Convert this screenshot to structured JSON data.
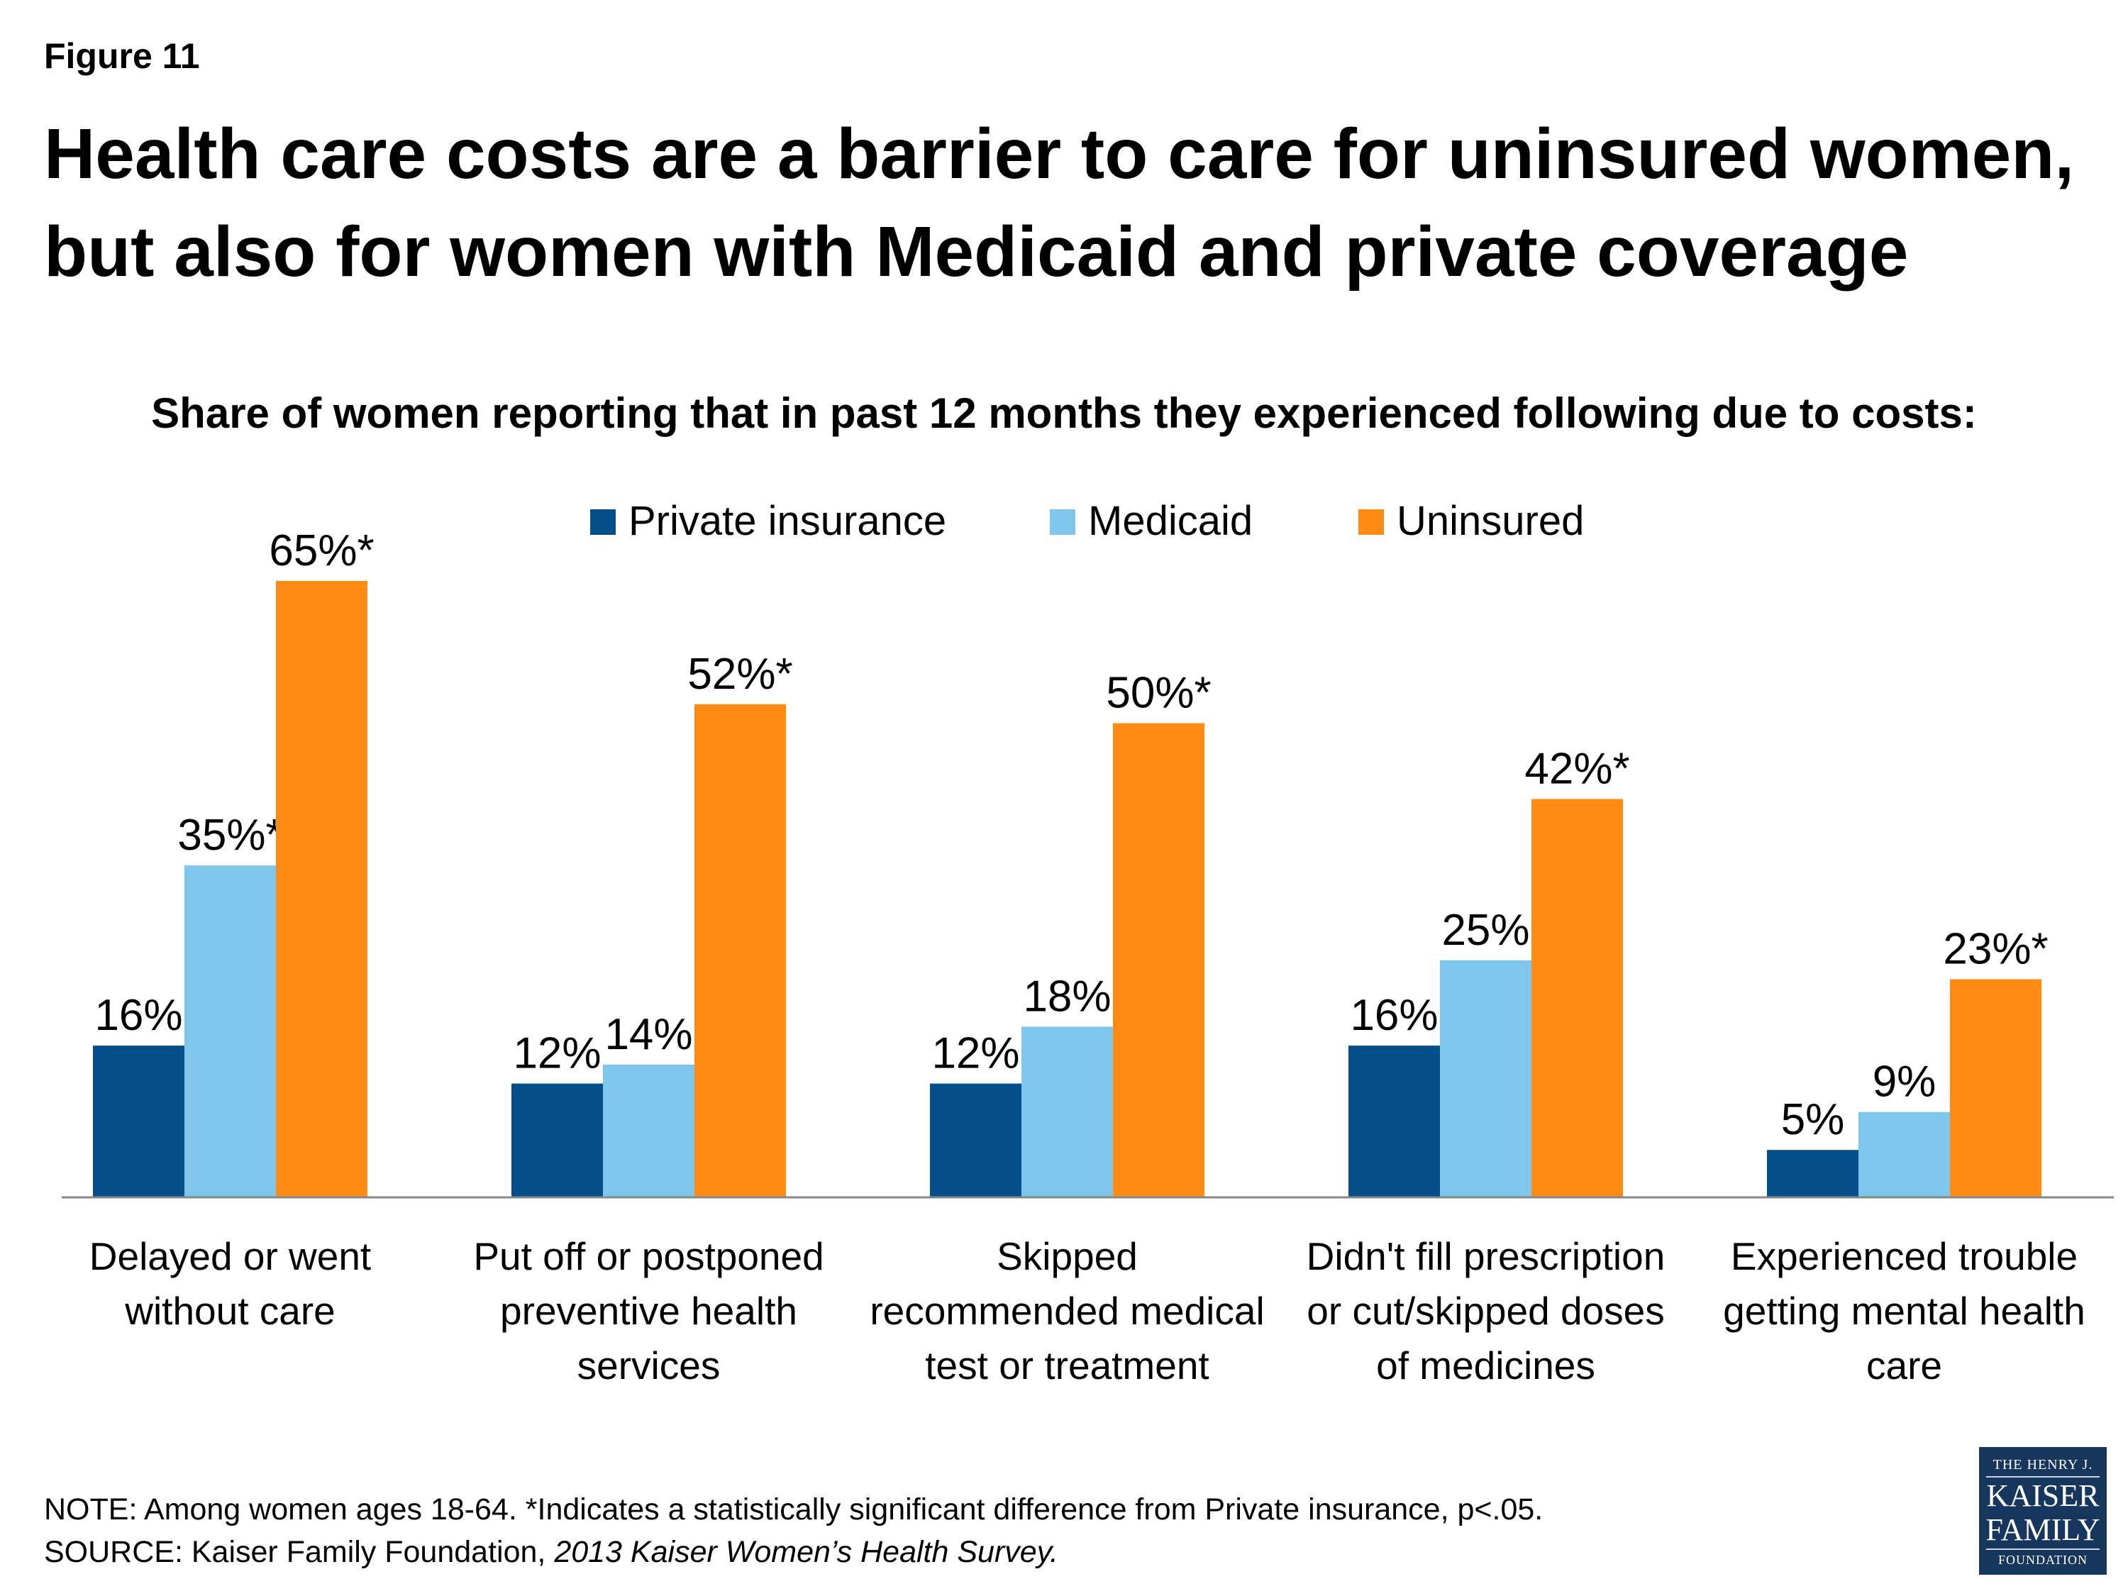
{
  "figure_label": "Figure 11",
  "title": "Health care costs are a barrier to care for uninsured women, but also for women with Medicaid and private coverage",
  "chart_data": {
    "type": "bar",
    "title": "Share of women reporting that in past 12 months they experienced following due to costs:",
    "categories": [
      [
        "Delayed or went",
        "without care"
      ],
      [
        "Put off or postponed",
        "preventive health",
        "services"
      ],
      [
        "Skipped",
        "recommended medical",
        "test or treatment"
      ],
      [
        "Didn't fill prescription",
        "or cut/skipped doses",
        "of medicines"
      ],
      [
        "Experienced trouble",
        "getting mental health",
        "care"
      ]
    ],
    "series": [
      {
        "name": "Private insurance",
        "color": "#044f89",
        "values": [
          16,
          12,
          12,
          16,
          5
        ],
        "labels": [
          "16%",
          "12%",
          "12%",
          "16%",
          "5%"
        ]
      },
      {
        "name": "Medicaid",
        "color": "#7fc6ec",
        "values": [
          35,
          14,
          18,
          25,
          9
        ],
        "labels": [
          "35%*",
          "14%",
          "18%",
          "25%",
          "9%"
        ]
      },
      {
        "name": "Uninsured",
        "color": "#ff8a14",
        "values": [
          65,
          52,
          50,
          42,
          23
        ],
        "labels": [
          "65%*",
          "52%*",
          "50%*",
          "42%*",
          "23%*"
        ]
      }
    ],
    "ylim": [
      0,
      65
    ],
    "grid": false,
    "legend_position": "top-center"
  },
  "notes": {
    "note": "NOTE: Among women ages 18-64. *Indicates a statistically significant difference from Private insurance, p<.05.",
    "source_prefix": "SOURCE: Kaiser Family Foundation, ",
    "source_italic": "2013 Kaiser Women’s Health Survey."
  },
  "logo": {
    "line1": "THE HENRY J.",
    "line2": "KAISER",
    "line3": "FAMILY",
    "line4": "FOUNDATION"
  }
}
